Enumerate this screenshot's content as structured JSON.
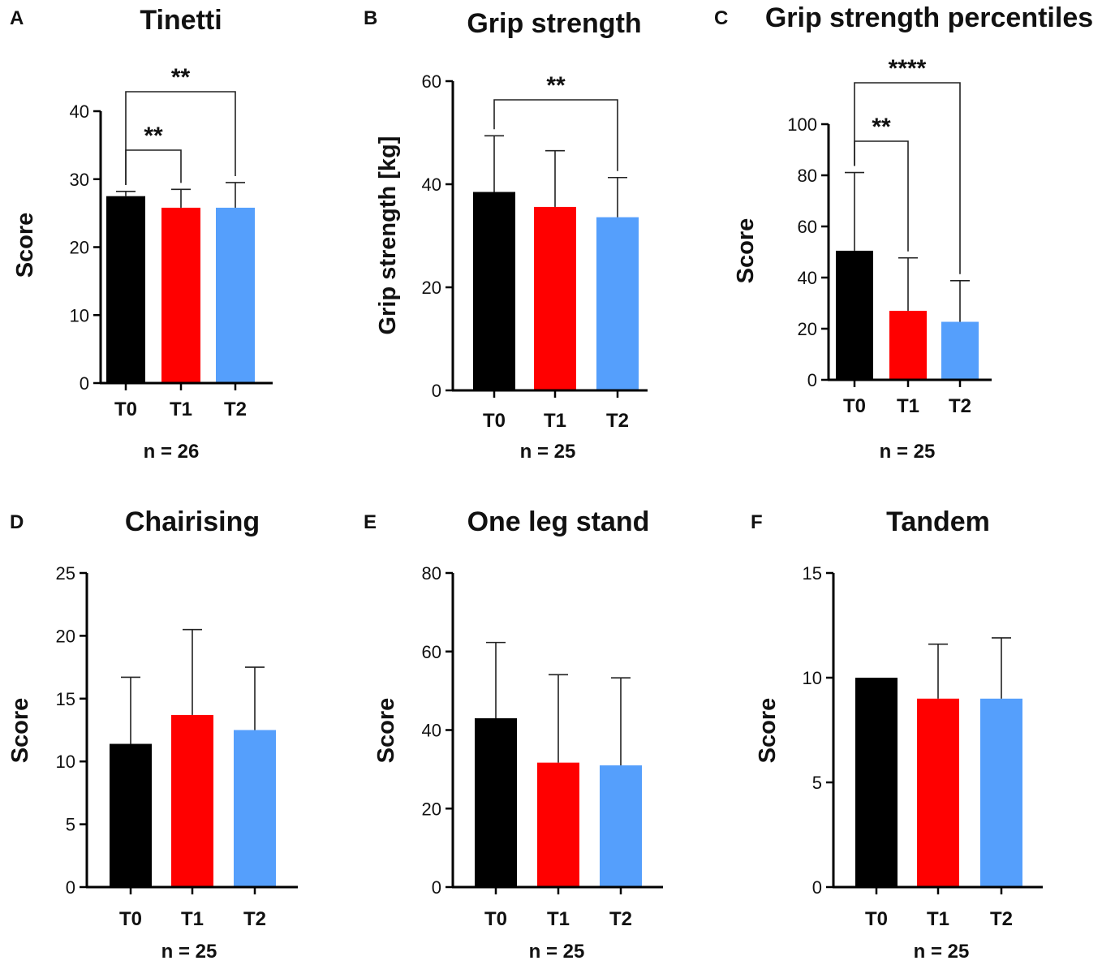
{
  "figure": {
    "series_names": [
      "T0",
      "T1",
      "T2"
    ]
  },
  "chart_data": [
    {
      "panel": "A",
      "type": "bar",
      "title": "Tinetti",
      "ylabel": "Score",
      "categories": [
        "T0",
        "T1",
        "T2"
      ],
      "values": [
        27.5,
        25.8,
        25.8
      ],
      "errors": [
        0.7,
        2.7,
        3.7
      ],
      "ylim": [
        0,
        40
      ],
      "yticks": [
        0,
        10,
        20,
        30,
        40
      ],
      "colors": [
        "#000000",
        "#ff0000",
        "#559ffc"
      ],
      "n_label": "n = 26",
      "significance": [
        {
          "from": "T0",
          "to": "T1",
          "label": "**"
        },
        {
          "from": "T0",
          "to": "T2",
          "label": "**"
        }
      ]
    },
    {
      "panel": "B",
      "type": "bar",
      "title": "Grip strength",
      "ylabel": "Grip strength [kg]",
      "categories": [
        "T0",
        "T1",
        "T2"
      ],
      "values": [
        38.5,
        35.6,
        33.6
      ],
      "errors": [
        10.9,
        10.9,
        7.7
      ],
      "ylim": [
        0,
        60
      ],
      "yticks": [
        0,
        20,
        40,
        60
      ],
      "colors": [
        "#000000",
        "#ff0000",
        "#559ffc"
      ],
      "n_label": "n = 25",
      "significance": [
        {
          "from": "T0",
          "to": "T2",
          "label": "**"
        }
      ]
    },
    {
      "panel": "C",
      "type": "bar",
      "title": "Grip strength percentiles",
      "ylabel": "Score",
      "categories": [
        "T0",
        "T1",
        "T2"
      ],
      "values": [
        50.5,
        27,
        22.7
      ],
      "errors": [
        30.6,
        20.7,
        16.1
      ],
      "ylim": [
        0,
        100
      ],
      "yticks": [
        0,
        20,
        40,
        60,
        80,
        100
      ],
      "colors": [
        "#000000",
        "#ff0000",
        "#559ffc"
      ],
      "n_label": "n = 25",
      "significance": [
        {
          "from": "T0",
          "to": "T1",
          "label": "**"
        },
        {
          "from": "T0",
          "to": "T2",
          "label": "****"
        }
      ]
    },
    {
      "panel": "D",
      "type": "bar",
      "title": "Chairising",
      "ylabel": "Score",
      "categories": [
        "T0",
        "T1",
        "T2"
      ],
      "values": [
        11.4,
        13.7,
        12.5
      ],
      "errors": [
        5.3,
        6.8,
        5.0
      ],
      "ylim": [
        0,
        25
      ],
      "yticks": [
        0,
        5,
        10,
        15,
        20,
        25
      ],
      "colors": [
        "#000000",
        "#ff0000",
        "#559ffc"
      ],
      "n_label": "n = 25",
      "significance": []
    },
    {
      "panel": "E",
      "type": "bar",
      "title": "One leg stand",
      "ylabel": "Score",
      "categories": [
        "T0",
        "T1",
        "T2"
      ],
      "values": [
        43,
        31.7,
        31
      ],
      "errors": [
        19.3,
        22.4,
        22.3
      ],
      "ylim": [
        0,
        80
      ],
      "yticks": [
        0,
        20,
        40,
        60,
        80
      ],
      "colors": [
        "#000000",
        "#ff0000",
        "#559ffc"
      ],
      "n_label": "n = 25",
      "significance": []
    },
    {
      "panel": "F",
      "type": "bar",
      "title": "Tandem",
      "ylabel": "Score",
      "categories": [
        "T0",
        "T1",
        "T2"
      ],
      "values": [
        10,
        9,
        9
      ],
      "errors": [
        0,
        2.6,
        2.9
      ],
      "ylim": [
        0,
        15
      ],
      "yticks": [
        0,
        5,
        10,
        15
      ],
      "colors": [
        "#000000",
        "#ff0000",
        "#559ffc"
      ],
      "n_label": "n = 25",
      "significance": []
    }
  ]
}
